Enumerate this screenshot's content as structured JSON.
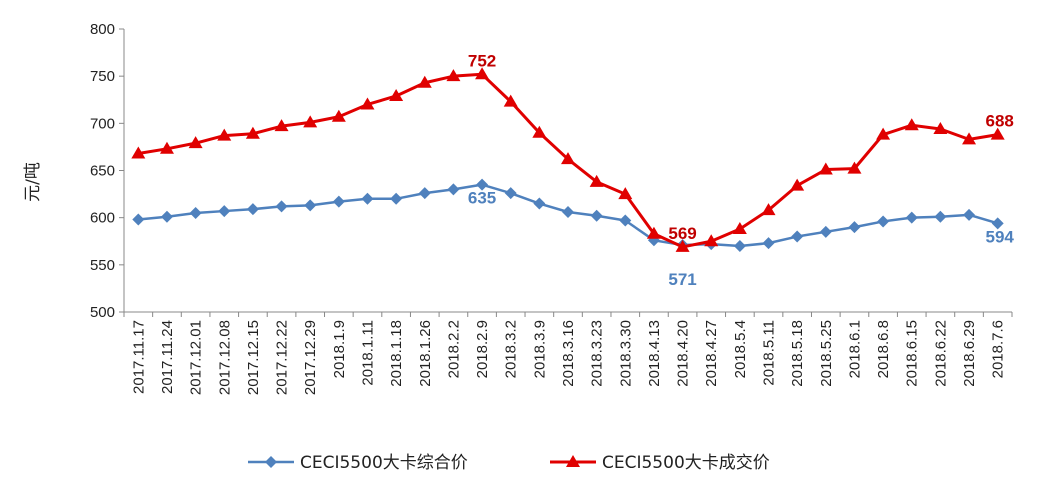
{
  "chart_data": {
    "type": "line",
    "title": "",
    "xlabel": "",
    "ylabel": "元/吨",
    "ylim": [
      500,
      800
    ],
    "yticks": [
      500,
      550,
      600,
      650,
      700,
      750,
      800
    ],
    "grid": false,
    "legend_position": "bottom",
    "categories": [
      "2017.11.17",
      "2017.11.24",
      "2017.12.01",
      "2017.12.08",
      "2017.12.15",
      "2017.12.22",
      "2017.12.29",
      "2018.1.9",
      "2018.1.11",
      "2018.1.18",
      "2018.1.26",
      "2018.2.2",
      "2018.2.9",
      "2018.3.2",
      "2018.3.9",
      "2018.3.16",
      "2018.3.23",
      "2018.3.30",
      "2018.4.13",
      "2018.4.20",
      "2018.4.27",
      "2018.5.4",
      "2018.5.11",
      "2018.5.18",
      "2018.5.25",
      "2018.6.1",
      "2018.6.8",
      "2018.6.15",
      "2018.6.22",
      "2018.6.29",
      "2018.7.6"
    ],
    "series": [
      {
        "name": "CECI5500大卡综合价",
        "color": "#4F81BD",
        "marker": "diamond",
        "values": [
          598,
          601,
          605,
          607,
          609,
          612,
          613,
          617,
          620,
          620,
          626,
          630,
          635,
          626,
          615,
          606,
          602,
          597,
          576,
          571,
          572,
          570,
          573,
          580,
          585,
          590,
          596,
          600,
          601,
          603,
          594
        ],
        "labels": [
          {
            "index": 12,
            "text": "635"
          },
          {
            "index": 19,
            "text": "571"
          },
          {
            "index": 30,
            "text": "594"
          }
        ],
        "label_color": "#4F81BD"
      },
      {
        "name": "CECI5500大卡成交价",
        "color": "#E00000",
        "marker": "triangle",
        "values": [
          668,
          673,
          679,
          687,
          689,
          697,
          701,
          707,
          720,
          729,
          743,
          750,
          752,
          723,
          690,
          662,
          638,
          625,
          583,
          569,
          575,
          588,
          608,
          634,
          651,
          652,
          688,
          698,
          694,
          683,
          688
        ],
        "labels": [
          {
            "index": 12,
            "text": "752"
          },
          {
            "index": 19,
            "text": "569"
          },
          {
            "index": 30,
            "text": "688"
          }
        ],
        "label_color": "#C00000"
      }
    ]
  }
}
